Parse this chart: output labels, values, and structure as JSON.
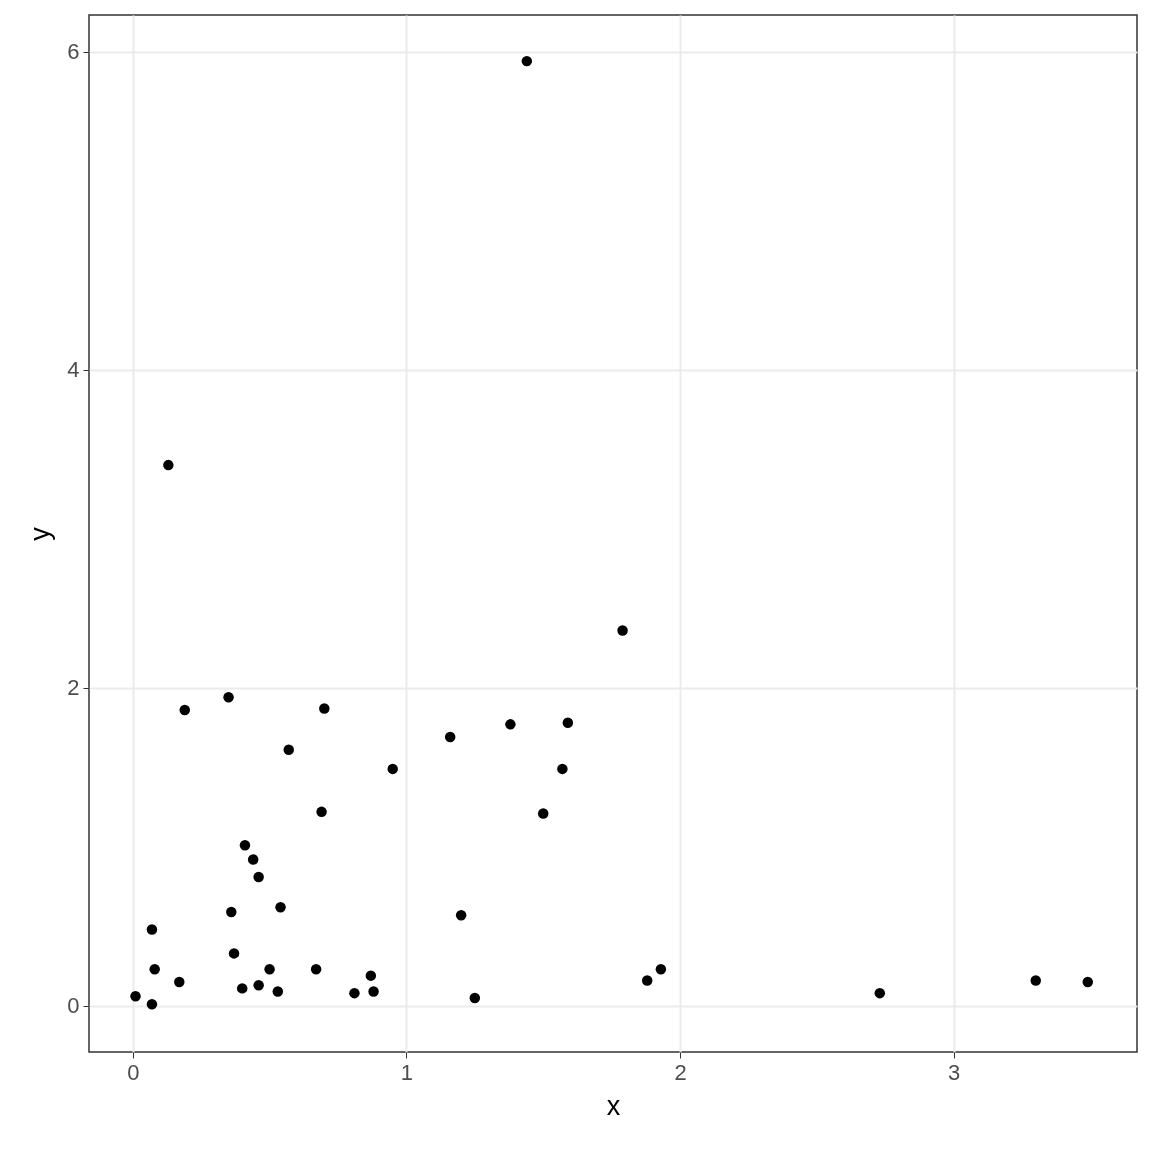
{
  "chart_data": {
    "type": "scatter",
    "xlabel": "x",
    "ylabel": "y",
    "x": [
      0.01,
      0.07,
      0.07,
      0.08,
      0.13,
      0.17,
      0.19,
      0.35,
      0.36,
      0.37,
      0.4,
      0.41,
      0.44,
      0.46,
      0.46,
      0.5,
      0.53,
      0.54,
      0.57,
      0.67,
      0.69,
      0.7,
      0.81,
      0.87,
      0.88,
      0.95,
      1.16,
      1.2,
      1.25,
      1.38,
      1.44,
      1.5,
      1.57,
      1.59,
      1.79,
      1.88,
      1.93,
      2.73,
      3.3,
      3.49
    ],
    "values": [
      0.06,
      0.01,
      0.48,
      0.23,
      3.4,
      0.15,
      1.86,
      1.94,
      0.59,
      0.33,
      0.11,
      1.01,
      0.92,
      0.81,
      0.13,
      0.23,
      0.09,
      0.62,
      1.61,
      0.23,
      1.22,
      1.87,
      0.08,
      0.19,
      0.09,
      1.49,
      1.69,
      0.57,
      0.05,
      1.77,
      5.94,
      1.21,
      1.49,
      1.78,
      2.36,
      0.16,
      0.23,
      0.08,
      0.16,
      0.15
    ],
    "color": "#000000",
    "marker": "circle",
    "grid": true,
    "xlim": [
      -0.16,
      3.67
    ],
    "ylim": [
      -0.29,
      6.23
    ],
    "xticks": [
      0,
      1,
      2,
      3
    ],
    "yticks": [
      0,
      2,
      4,
      6
    ]
  }
}
